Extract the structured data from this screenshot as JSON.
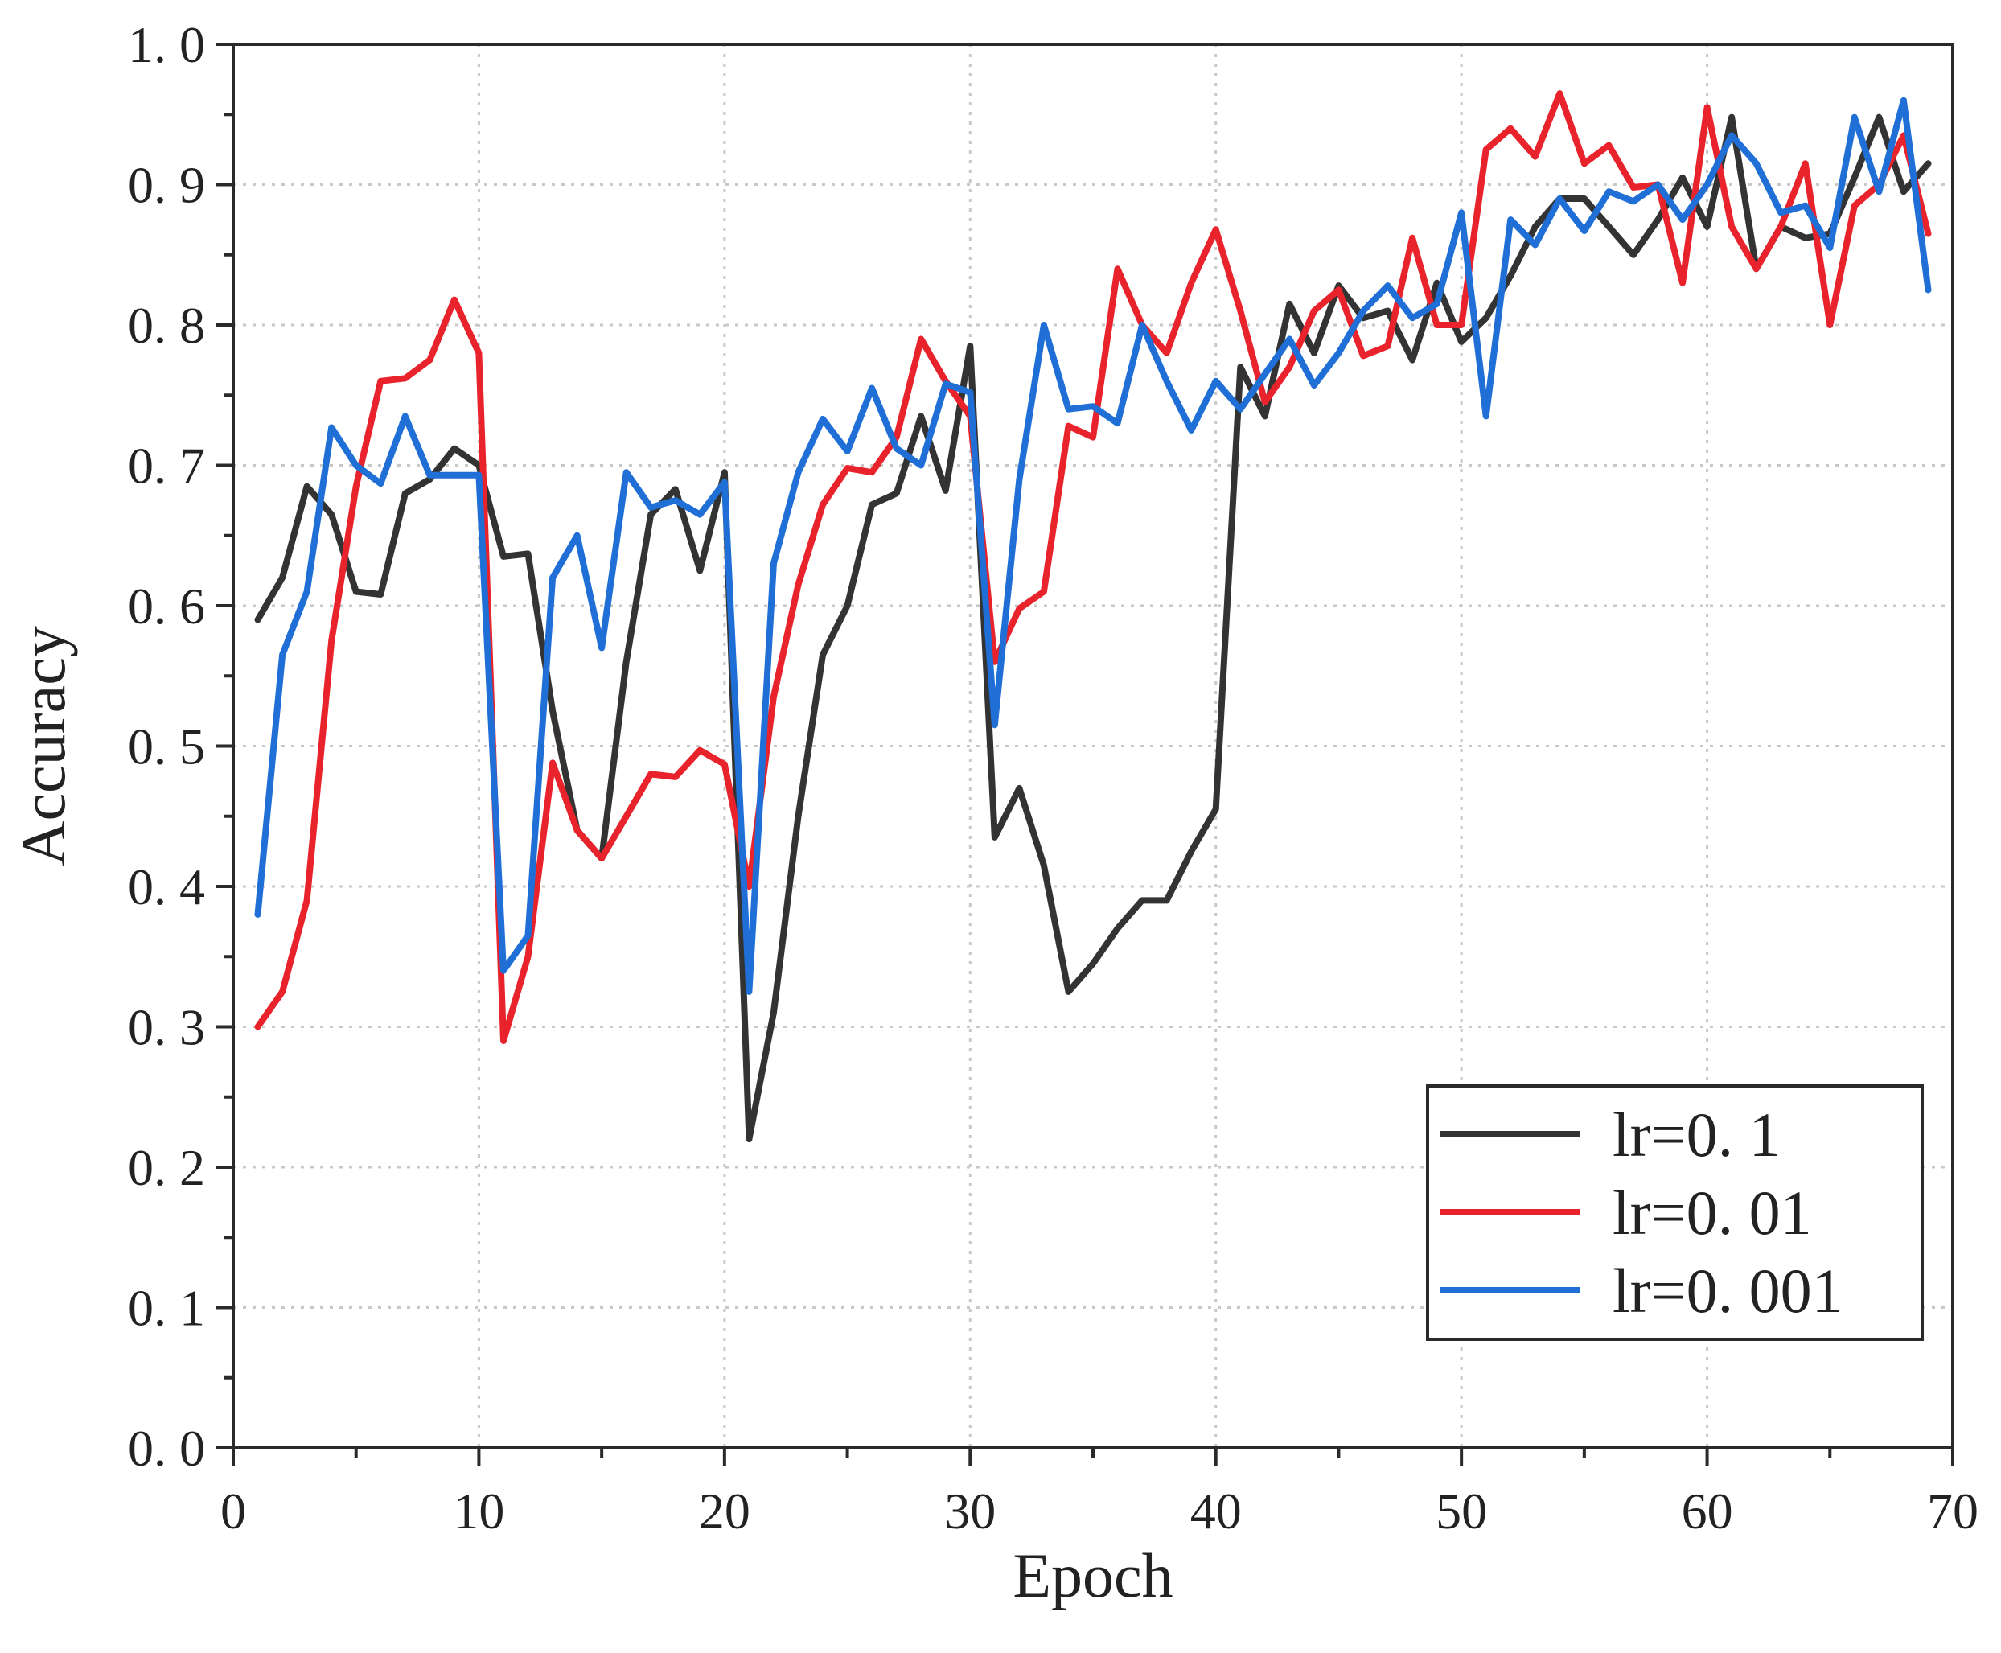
{
  "chart_data": {
    "type": "line",
    "xlabel": "Epoch",
    "ylabel": "Accuracy",
    "xlim": [
      0,
      70
    ],
    "ylim": [
      0.0,
      1.0
    ],
    "x_ticks": [
      0,
      10,
      20,
      30,
      40,
      50,
      60,
      70
    ],
    "x_tick_labels": [
      "0",
      "10",
      "20",
      "30",
      "40",
      "50",
      "60",
      "70"
    ],
    "y_ticks": [
      0.0,
      0.1,
      0.2,
      0.3,
      0.4,
      0.5,
      0.6,
      0.7,
      0.8,
      0.9,
      1.0
    ],
    "y_tick_labels": [
      "0. 0",
      "0. 1",
      "0. 2",
      "0. 3",
      "0. 4",
      "0. 5",
      "0. 6",
      "0. 7",
      "0. 8",
      "0. 9",
      "1. 0"
    ],
    "grid": true,
    "legend_position": "bottom-right",
    "x": [
      1,
      2,
      3,
      4,
      5,
      6,
      7,
      8,
      9,
      10,
      11,
      12,
      13,
      14,
      15,
      16,
      17,
      18,
      19,
      20,
      21,
      22,
      23,
      24,
      25,
      26,
      27,
      28,
      29,
      30,
      31,
      32,
      33,
      34,
      35,
      36,
      37,
      38,
      39,
      40,
      41,
      42,
      43,
      44,
      45,
      46,
      47,
      48,
      49,
      50,
      51,
      52,
      53,
      54,
      55,
      56,
      57,
      58,
      59,
      60,
      61,
      62,
      63,
      64,
      65,
      66,
      67,
      68,
      69
    ],
    "series": [
      {
        "name": "lr=0. 1",
        "color": "#333333",
        "values": [
          0.59,
          0.62,
          0.685,
          0.665,
          0.61,
          0.608,
          0.68,
          0.69,
          0.712,
          0.7,
          0.635,
          0.637,
          0.525,
          0.44,
          0.42,
          0.56,
          0.665,
          0.683,
          0.625,
          0.695,
          0.22,
          0.31,
          0.45,
          0.565,
          0.6,
          0.672,
          0.68,
          0.735,
          0.682,
          0.785,
          0.435,
          0.47,
          0.415,
          0.325,
          0.345,
          0.37,
          0.39,
          0.39,
          0.425,
          0.455,
          0.77,
          0.735,
          0.815,
          0.78,
          0.828,
          0.805,
          0.81,
          0.775,
          0.83,
          0.788,
          0.805,
          0.835,
          0.87,
          0.89,
          0.89,
          0.87,
          0.85,
          0.875,
          0.905,
          0.87,
          0.948,
          0.84,
          0.87,
          0.862,
          0.865,
          0.905,
          0.948,
          0.895,
          0.915
        ]
      },
      {
        "name": "lr=0. 01",
        "color": "#e8232b",
        "values": [
          0.3,
          0.325,
          0.39,
          0.575,
          0.685,
          0.76,
          0.762,
          0.775,
          0.818,
          0.78,
          0.29,
          0.35,
          0.488,
          0.44,
          0.42,
          0.45,
          0.48,
          0.478,
          0.497,
          0.487,
          0.4,
          0.535,
          0.615,
          0.672,
          0.698,
          0.695,
          0.72,
          0.79,
          0.76,
          0.735,
          0.56,
          0.598,
          0.61,
          0.728,
          0.72,
          0.84,
          0.8,
          0.78,
          0.83,
          0.868,
          0.81,
          0.745,
          0.77,
          0.81,
          0.825,
          0.778,
          0.785,
          0.862,
          0.8,
          0.8,
          0.925,
          0.94,
          0.92,
          0.965,
          0.915,
          0.928,
          0.898,
          0.9,
          0.83,
          0.955,
          0.87,
          0.84,
          0.87,
          0.915,
          0.8,
          0.885,
          0.9,
          0.935,
          0.865
        ]
      },
      {
        "name": "lr=0. 001",
        "color": "#1f6fd6",
        "values": [
          0.38,
          0.565,
          0.61,
          0.727,
          0.7,
          0.687,
          0.735,
          0.693,
          0.693,
          0.693,
          0.34,
          0.365,
          0.62,
          0.65,
          0.57,
          0.695,
          0.67,
          0.675,
          0.665,
          0.688,
          0.325,
          0.63,
          0.695,
          0.733,
          0.71,
          0.755,
          0.712,
          0.7,
          0.758,
          0.752,
          0.515,
          0.69,
          0.8,
          0.74,
          0.742,
          0.73,
          0.8,
          0.76,
          0.725,
          0.76,
          0.74,
          0.765,
          0.79,
          0.757,
          0.78,
          0.81,
          0.828,
          0.805,
          0.815,
          0.88,
          0.735,
          0.875,
          0.857,
          0.89,
          0.867,
          0.895,
          0.888,
          0.9,
          0.875,
          0.9,
          0.935,
          0.915,
          0.88,
          0.885,
          0.855,
          0.948,
          0.895,
          0.96,
          0.825
        ]
      }
    ]
  }
}
